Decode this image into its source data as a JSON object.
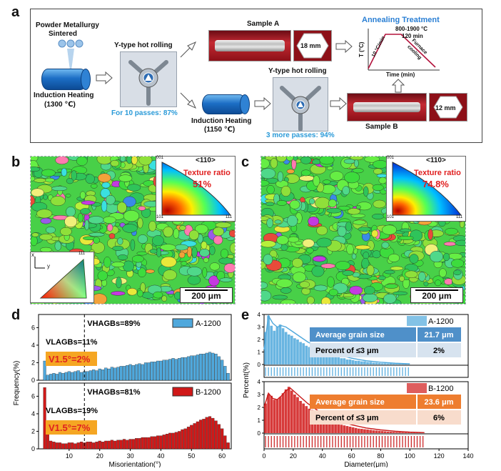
{
  "panels": {
    "a": "a",
    "b": "b",
    "c": "c",
    "d": "d",
    "e": "e"
  },
  "panel_a": {
    "powder_title_1": "Powder Metallurgy",
    "powder_title_2": "Sintered",
    "induction_1": "Induction Heating",
    "induction_1_temp": "(1300 ℃)",
    "rolling_1_title": "Y-type hot rolling",
    "rolling_1_passes": "For 10 passes: 87%",
    "sample_a": "Sample A",
    "sample_a_size": "18 mm",
    "induction_2": "Induction Heating",
    "induction_2_temp": "(1150 ℃)",
    "rolling_2_title": "Y-type hot rolling",
    "rolling_2_passes": "3 more passes: 94%",
    "annealing_title": "Annealing Treatment",
    "annealing_temp": "800-1900 °C",
    "annealing_time": "120 min",
    "annealing_rate": "10 °C/min",
    "annealing_cooling_1": "Furnace",
    "annealing_cooling_2": "cooling",
    "annealing_ylabel": "T (°C)",
    "annealing_xlabel": "Time (min)",
    "sample_b": "Sample B",
    "sample_b_size": "12 mm"
  },
  "panel_b": {
    "direction": "<110>",
    "texture_label": "Texture ratio",
    "texture_value": "51%",
    "scale": "200 μm",
    "ipf_001": "001",
    "ipf_101": "101",
    "ipf_111": "111",
    "axis_x": "x",
    "axis_y": "y"
  },
  "panel_c": {
    "direction": "<110>",
    "texture_label": "Texture ratio",
    "texture_value": "74.8%",
    "scale": "200 μm",
    "ipf_001": "001",
    "ipf_101": "101",
    "ipf_111": "111"
  },
  "colors": {
    "series_a": "#4fa8dc",
    "series_b": "#d01818",
    "label_highlight": "#f5a623",
    "table_a_header": "#4f90c9",
    "table_a_row": "#d7e3ef",
    "table_b_header": "#ee7d2f",
    "table_b_row": "#f8dccc",
    "texture_red": "#e02020"
  },
  "chart_data": [
    {
      "type": "bar",
      "panel": "d",
      "xlabel": "Misorientation(°)",
      "ylabel": "Frequency(%)",
      "xlim": [
        0,
        63
      ],
      "xticks": [
        10,
        20,
        30,
        40,
        50,
        60
      ],
      "dashed_line_x": 15,
      "subplots": [
        {
          "name": "A-1200",
          "ylim": [
            0,
            7.5
          ],
          "yticks": [
            0,
            2,
            4,
            6
          ],
          "annotations": {
            "hagb_label": "VHAGBs=89%",
            "lagb_label": "VLAGBs=11%",
            "v15_label": "V1.5°=2%"
          },
          "x": [
            2,
            3,
            4,
            5,
            6,
            7,
            8,
            9,
            10,
            11,
            12,
            13,
            14,
            15,
            16,
            17,
            18,
            19,
            20,
            21,
            22,
            23,
            24,
            25,
            26,
            27,
            28,
            29,
            30,
            31,
            32,
            33,
            34,
            35,
            36,
            37,
            38,
            39,
            40,
            41,
            42,
            43,
            44,
            45,
            46,
            47,
            48,
            49,
            50,
            51,
            52,
            53,
            54,
            55,
            56,
            57,
            58,
            59,
            60,
            61,
            62
          ],
          "values": [
            2.2,
            0.6,
            0.7,
            0.8,
            0.7,
            0.9,
            0.8,
            0.9,
            1.0,
            0.9,
            1.0,
            1.1,
            0.9,
            1.0,
            1.0,
            1.1,
            1.2,
            1.1,
            1.3,
            1.2,
            1.4,
            1.3,
            1.5,
            1.4,
            1.5,
            1.6,
            1.6,
            1.7,
            1.8,
            1.7,
            1.8,
            1.9,
            1.8,
            2.0,
            2.0,
            2.1,
            2.1,
            2.2,
            2.2,
            2.3,
            2.3,
            2.4,
            2.5,
            2.4,
            2.5,
            2.6,
            2.6,
            2.7,
            2.8,
            2.8,
            2.9,
            3.0,
            3.0,
            3.1,
            3.2,
            3.1,
            3.0,
            2.7,
            2.3,
            1.6,
            0.8
          ]
        },
        {
          "name": "B-1200",
          "ylim": [
            0,
            7.5
          ],
          "yticks": [
            0,
            2,
            4,
            6
          ],
          "annotations": {
            "hagb_label": "VHAGBs=81%",
            "lagb_label": "VLAGBs=19%",
            "v15_label": "V1.5°=7%"
          },
          "x": [
            2,
            3,
            4,
            5,
            6,
            7,
            8,
            9,
            10,
            11,
            12,
            13,
            14,
            15,
            16,
            17,
            18,
            19,
            20,
            21,
            22,
            23,
            24,
            25,
            26,
            27,
            28,
            29,
            30,
            31,
            32,
            33,
            34,
            35,
            36,
            37,
            38,
            39,
            40,
            41,
            42,
            43,
            44,
            45,
            46,
            47,
            48,
            49,
            50,
            51,
            52,
            53,
            54,
            55,
            56,
            57,
            58,
            59,
            60,
            61,
            62
          ],
          "values": [
            7.0,
            1.9,
            0.9,
            0.8,
            0.7,
            0.7,
            0.6,
            0.6,
            0.7,
            0.7,
            0.6,
            0.7,
            0.8,
            0.7,
            0.8,
            0.8,
            0.7,
            0.8,
            0.9,
            0.8,
            0.9,
            0.9,
            1.0,
            0.9,
            1.0,
            1.0,
            1.1,
            1.0,
            1.1,
            1.1,
            1.2,
            1.2,
            1.3,
            1.3,
            1.3,
            1.4,
            1.4,
            1.5,
            1.5,
            1.6,
            1.7,
            1.8,
            1.8,
            1.9,
            2.0,
            2.2,
            2.3,
            2.5,
            2.7,
            2.9,
            3.1,
            3.3,
            3.4,
            3.6,
            3.7,
            3.5,
            3.2,
            2.8,
            2.3,
            1.5,
            0.7
          ]
        }
      ]
    },
    {
      "type": "bar",
      "panel": "e",
      "xlabel": "Diameter(μm)",
      "ylabel": "Percent(%)",
      "xlim": [
        0,
        140
      ],
      "xticks": [
        0,
        20,
        40,
        60,
        80,
        100,
        120,
        140
      ],
      "subplots": [
        {
          "name": "A-1200",
          "ylim": [
            0,
            4
          ],
          "yticks": [
            0,
            1,
            2,
            3,
            4
          ],
          "table": {
            "row1_label": "Average grain size",
            "row1_value": "21.7 μm",
            "row2_label": "Percent of ≤3 μm",
            "row2_value": "2%"
          },
          "x": [
            1,
            3,
            5,
            7,
            9,
            11,
            13,
            15,
            17,
            19,
            21,
            23,
            25,
            27,
            29,
            31,
            33,
            35,
            37,
            39,
            41,
            43,
            45,
            47,
            49,
            51,
            53,
            55,
            57,
            59,
            61,
            63,
            65,
            67,
            69,
            71,
            73,
            75,
            77,
            79,
            81,
            83,
            85,
            87,
            89,
            91,
            93,
            95,
            97,
            99
          ],
          "values": [
            2.6,
            3.9,
            3.1,
            2.7,
            3.0,
            3.2,
            2.9,
            2.6,
            2.4,
            2.3,
            2.1,
            2.0,
            1.8,
            1.7,
            1.5,
            1.4,
            1.3,
            1.2,
            1.1,
            1.0,
            0.9,
            0.8,
            0.8,
            0.7,
            0.6,
            0.6,
            0.5,
            0.5,
            0.4,
            0.4,
            0.35,
            0.3,
            0.3,
            0.25,
            0.25,
            0.2,
            0.2,
            0.15,
            0.15,
            0.12,
            0.1,
            0.1,
            0.08,
            0.08,
            0.06,
            0.05,
            0.05,
            0.04,
            0.03,
            0.02
          ],
          "fit_x": [
            0,
            3,
            6,
            9,
            12,
            15,
            20,
            25,
            30,
            40,
            50,
            60,
            70,
            80,
            90,
            100
          ],
          "fit_y": [
            1.2,
            3.9,
            3.3,
            3.0,
            3.1,
            3.0,
            2.6,
            2.2,
            1.8,
            1.2,
            0.8,
            0.5,
            0.3,
            0.18,
            0.1,
            0.05
          ]
        },
        {
          "name": "B-1200",
          "ylim": [
            0,
            4
          ],
          "yticks": [
            0,
            1,
            2,
            3,
            4
          ],
          "table": {
            "row1_label": "Average grain size",
            "row1_value": "23.6 μm",
            "row2_label": "Percent of ≤3 μm",
            "row2_value": "6%"
          },
          "x": [
            1,
            3,
            5,
            7,
            9,
            11,
            13,
            15,
            17,
            19,
            21,
            23,
            25,
            27,
            29,
            31,
            33,
            35,
            37,
            39,
            41,
            43,
            45,
            47,
            49,
            51,
            53,
            55,
            57,
            59,
            61,
            63,
            65,
            67,
            69,
            71,
            73,
            75,
            77,
            79,
            81,
            83,
            85,
            87,
            89,
            91,
            93,
            95,
            97,
            99,
            101,
            103,
            105,
            107,
            109
          ],
          "values": [
            2.3,
            3.0,
            2.9,
            2.6,
            2.6,
            2.8,
            3.1,
            3.4,
            3.6,
            3.3,
            3.0,
            2.8,
            2.5,
            2.3,
            2.1,
            1.9,
            1.8,
            1.6,
            1.5,
            1.3,
            1.2,
            1.1,
            1.0,
            0.9,
            0.8,
            0.7,
            0.65,
            0.6,
            0.55,
            0.5,
            0.45,
            0.4,
            0.35,
            0.33,
            0.3,
            0.28,
            0.25,
            0.22,
            0.2,
            0.18,
            0.16,
            0.14,
            0.12,
            0.11,
            0.1,
            0.09,
            0.08,
            0.07,
            0.06,
            0.05,
            0.04,
            0.04,
            0.03,
            0.03,
            0.02
          ],
          "fit_x": [
            0,
            3,
            6,
            9,
            12,
            15,
            18,
            21,
            25,
            30,
            40,
            50,
            60,
            70,
            80,
            90,
            100,
            110
          ],
          "fit_y": [
            2.0,
            3.1,
            2.7,
            2.6,
            2.9,
            3.3,
            3.5,
            3.2,
            2.8,
            2.3,
            1.5,
            1.0,
            0.65,
            0.4,
            0.25,
            0.15,
            0.08,
            0.04
          ]
        }
      ]
    }
  ]
}
